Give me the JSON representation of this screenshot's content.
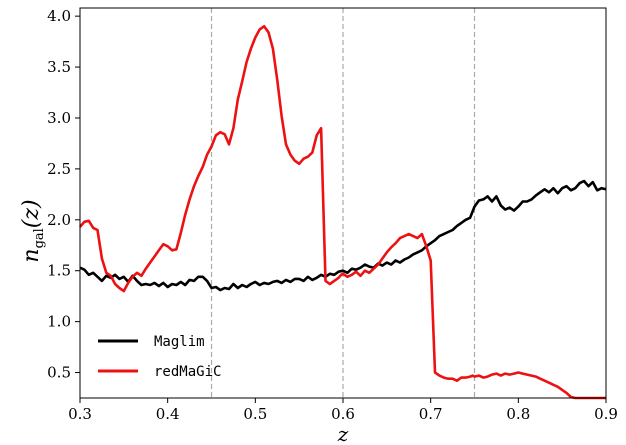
{
  "chart_data": {
    "type": "line",
    "xlabel": "z",
    "ylabel_main": "n",
    "ylabel_sub": "gal",
    "ylabel_arg": "(z)",
    "xlim": [
      0.3,
      0.9
    ],
    "ylim": [
      0.25,
      4.08
    ],
    "xticks": [
      "0.3",
      "0.4",
      "0.5",
      "0.6",
      "0.7",
      "0.8",
      "0.9"
    ],
    "xtick_values": [
      0.3,
      0.4,
      0.5,
      0.6,
      0.7,
      0.8,
      0.9
    ],
    "yticks": [
      "0.5",
      "1.0",
      "1.5",
      "2.0",
      "2.5",
      "3.0",
      "3.5",
      "4.0"
    ],
    "ytick_values": [
      0.5,
      1.0,
      1.5,
      2.0,
      2.5,
      3.0,
      3.5,
      4.0
    ],
    "vlines": [
      0.45,
      0.6,
      0.75
    ],
    "vline_color": "#aaaaaa",
    "legend_position": "lower-left",
    "series": [
      {
        "name": "Maglim",
        "color": "#000000",
        "x": [
          0.3,
          0.305,
          0.31,
          0.315,
          0.32,
          0.325,
          0.33,
          0.335,
          0.34,
          0.345,
          0.35,
          0.355,
          0.36,
          0.365,
          0.37,
          0.375,
          0.38,
          0.385,
          0.39,
          0.395,
          0.4,
          0.405,
          0.41,
          0.415,
          0.42,
          0.425,
          0.43,
          0.435,
          0.44,
          0.445,
          0.45,
          0.455,
          0.46,
          0.465,
          0.47,
          0.475,
          0.48,
          0.485,
          0.49,
          0.495,
          0.5,
          0.505,
          0.51,
          0.515,
          0.52,
          0.525,
          0.53,
          0.535,
          0.54,
          0.545,
          0.55,
          0.555,
          0.56,
          0.565,
          0.57,
          0.575,
          0.58,
          0.585,
          0.59,
          0.595,
          0.6,
          0.605,
          0.61,
          0.615,
          0.62,
          0.625,
          0.63,
          0.635,
          0.64,
          0.645,
          0.65,
          0.655,
          0.66,
          0.665,
          0.67,
          0.675,
          0.68,
          0.685,
          0.69,
          0.695,
          0.7,
          0.705,
          0.71,
          0.715,
          0.72,
          0.725,
          0.73,
          0.735,
          0.74,
          0.745,
          0.75,
          0.755,
          0.76,
          0.765,
          0.77,
          0.775,
          0.78,
          0.785,
          0.79,
          0.795,
          0.8,
          0.805,
          0.81,
          0.815,
          0.82,
          0.825,
          0.83,
          0.835,
          0.84,
          0.845,
          0.85,
          0.855,
          0.86,
          0.865,
          0.87,
          0.875,
          0.88,
          0.885,
          0.89,
          0.895,
          0.9
        ],
        "y": [
          1.53,
          1.51,
          1.46,
          1.48,
          1.44,
          1.4,
          1.45,
          1.43,
          1.46,
          1.42,
          1.44,
          1.39,
          1.45,
          1.4,
          1.36,
          1.37,
          1.36,
          1.38,
          1.35,
          1.38,
          1.34,
          1.37,
          1.36,
          1.39,
          1.36,
          1.41,
          1.4,
          1.44,
          1.44,
          1.4,
          1.33,
          1.34,
          1.31,
          1.33,
          1.32,
          1.37,
          1.33,
          1.36,
          1.34,
          1.37,
          1.39,
          1.36,
          1.38,
          1.37,
          1.39,
          1.4,
          1.38,
          1.41,
          1.39,
          1.42,
          1.42,
          1.4,
          1.44,
          1.41,
          1.43,
          1.46,
          1.44,
          1.47,
          1.46,
          1.49,
          1.5,
          1.48,
          1.52,
          1.51,
          1.53,
          1.56,
          1.54,
          1.53,
          1.57,
          1.55,
          1.58,
          1.56,
          1.6,
          1.58,
          1.61,
          1.63,
          1.66,
          1.68,
          1.7,
          1.74,
          1.77,
          1.8,
          1.84,
          1.86,
          1.88,
          1.9,
          1.94,
          1.97,
          2.0,
          2.02,
          2.13,
          2.19,
          2.2,
          2.23,
          2.18,
          2.23,
          2.14,
          2.1,
          2.12,
          2.09,
          2.13,
          2.18,
          2.18,
          2.2,
          2.24,
          2.27,
          2.3,
          2.27,
          2.31,
          2.26,
          2.31,
          2.33,
          2.29,
          2.31,
          2.36,
          2.38,
          2.33,
          2.37,
          2.29,
          2.31,
          2.3
        ]
      },
      {
        "name": "redMaGiC",
        "color": "#ee1111",
        "x": [
          0.3,
          0.305,
          0.31,
          0.315,
          0.32,
          0.325,
          0.33,
          0.335,
          0.34,
          0.345,
          0.35,
          0.355,
          0.36,
          0.365,
          0.37,
          0.375,
          0.38,
          0.385,
          0.39,
          0.395,
          0.4,
          0.405,
          0.41,
          0.415,
          0.42,
          0.425,
          0.43,
          0.435,
          0.44,
          0.445,
          0.45,
          0.455,
          0.46,
          0.465,
          0.47,
          0.475,
          0.48,
          0.485,
          0.49,
          0.495,
          0.5,
          0.505,
          0.51,
          0.515,
          0.52,
          0.525,
          0.53,
          0.535,
          0.54,
          0.545,
          0.55,
          0.555,
          0.56,
          0.565,
          0.57,
          0.575,
          0.58,
          0.585,
          0.59,
          0.595,
          0.598,
          0.6,
          0.605,
          0.61,
          0.615,
          0.62,
          0.625,
          0.63,
          0.635,
          0.64,
          0.645,
          0.65,
          0.655,
          0.66,
          0.665,
          0.67,
          0.675,
          0.68,
          0.685,
          0.69,
          0.695,
          0.7,
          0.705,
          0.71,
          0.715,
          0.72,
          0.725,
          0.73,
          0.735,
          0.74,
          0.745,
          0.748,
          0.75,
          0.755,
          0.76,
          0.765,
          0.77,
          0.775,
          0.78,
          0.785,
          0.79,
          0.795,
          0.8,
          0.805,
          0.81,
          0.815,
          0.82,
          0.825,
          0.83,
          0.835,
          0.84,
          0.845,
          0.85,
          0.855,
          0.86,
          0.865,
          0.87,
          0.875,
          0.88,
          0.885,
          0.89,
          0.895,
          0.9
        ],
        "y": [
          1.93,
          1.98,
          1.99,
          1.92,
          1.9,
          1.62,
          1.48,
          1.45,
          1.37,
          1.33,
          1.3,
          1.38,
          1.44,
          1.48,
          1.45,
          1.52,
          1.58,
          1.64,
          1.7,
          1.76,
          1.74,
          1.7,
          1.71,
          1.87,
          2.05,
          2.2,
          2.33,
          2.43,
          2.52,
          2.64,
          2.72,
          2.83,
          2.86,
          2.84,
          2.74,
          2.9,
          3.18,
          3.36,
          3.55,
          3.68,
          3.79,
          3.87,
          3.9,
          3.84,
          3.68,
          3.37,
          3.02,
          2.74,
          2.64,
          2.58,
          2.55,
          2.6,
          2.62,
          2.66,
          2.83,
          2.9,
          1.4,
          1.37,
          1.4,
          1.43,
          1.46,
          1.47,
          1.44,
          1.46,
          1.49,
          1.45,
          1.5,
          1.48,
          1.52,
          1.56,
          1.62,
          1.68,
          1.73,
          1.77,
          1.82,
          1.84,
          1.86,
          1.84,
          1.82,
          1.86,
          1.74,
          1.6,
          0.5,
          0.47,
          0.45,
          0.44,
          0.44,
          0.42,
          0.45,
          0.45,
          0.46,
          0.47,
          0.46,
          0.47,
          0.45,
          0.46,
          0.48,
          0.49,
          0.47,
          0.49,
          0.48,
          0.49,
          0.5,
          0.49,
          0.48,
          0.47,
          0.46,
          0.44,
          0.42,
          0.4,
          0.38,
          0.36,
          0.33,
          0.3,
          0.26,
          0.25,
          0.25,
          0.25,
          0.25,
          0.25,
          0.25,
          0.25,
          0.25
        ]
      }
    ]
  }
}
